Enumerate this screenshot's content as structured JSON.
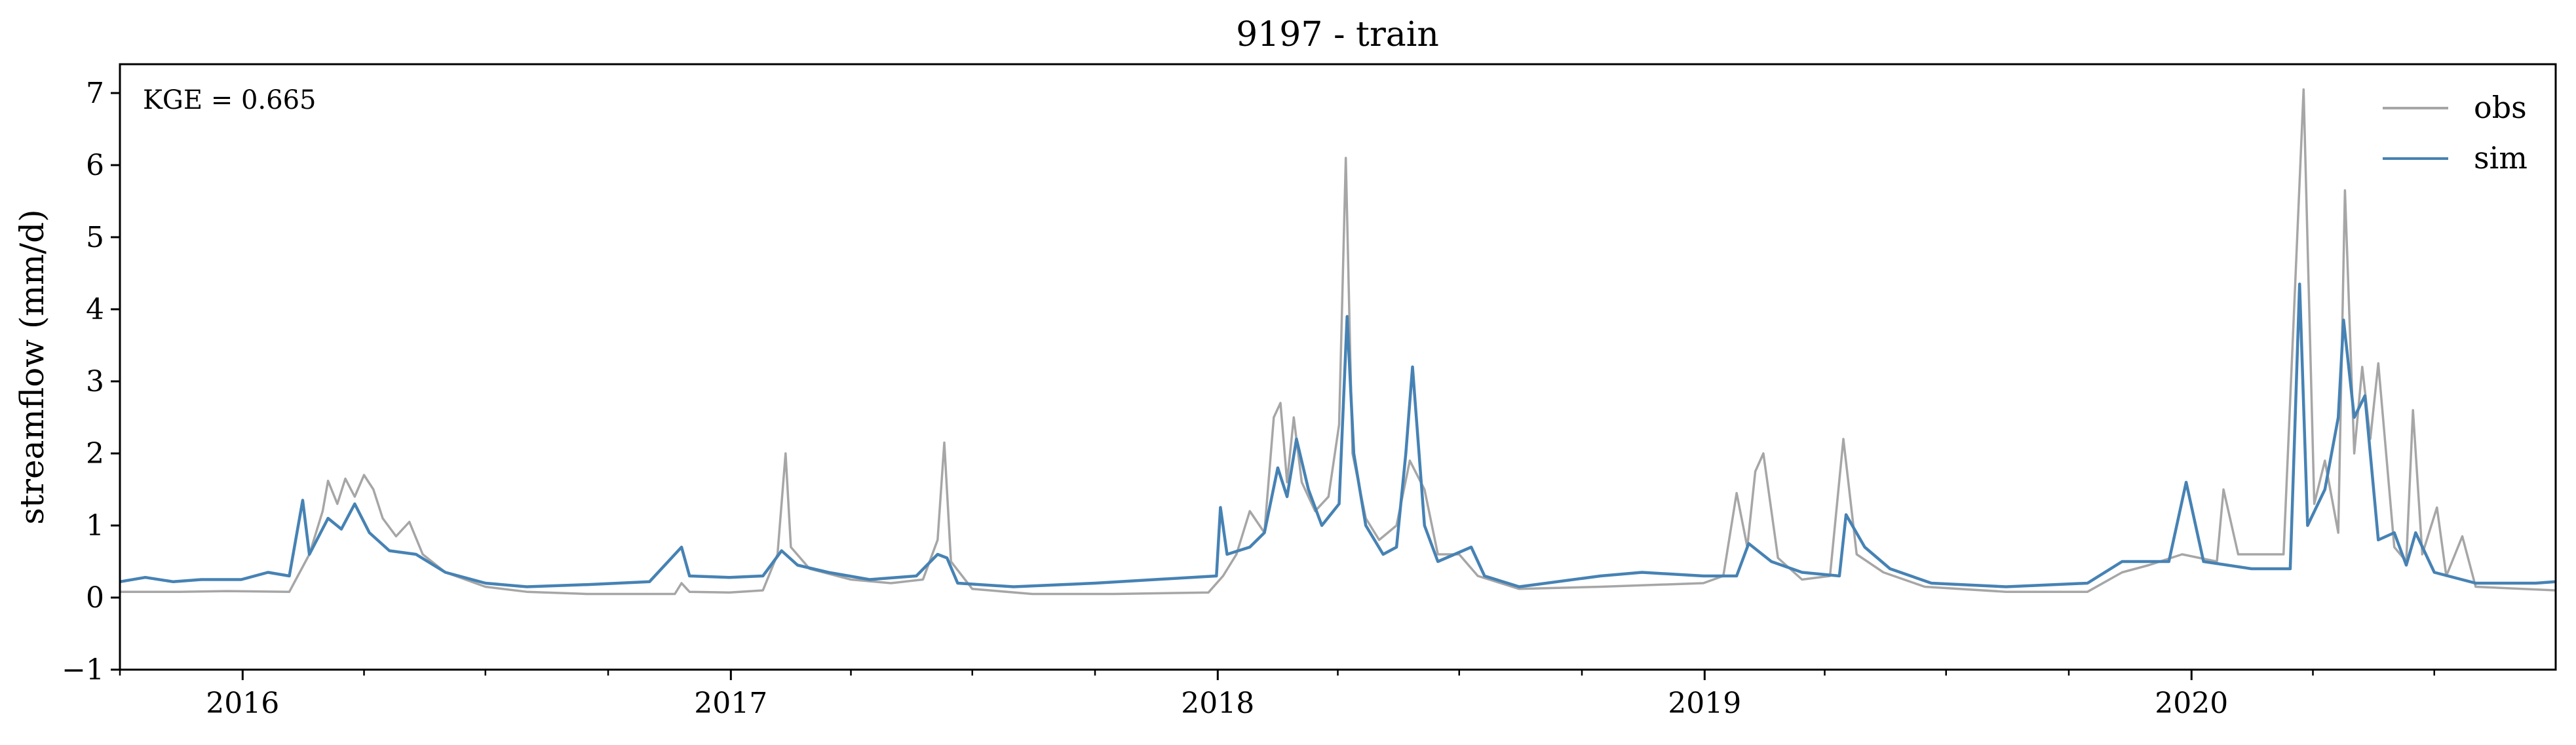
{
  "colors": {
    "obs": "#a6a6a6",
    "sim": "#4682b4",
    "axis": "#000000",
    "background": "#ffffff"
  },
  "chart_data": {
    "type": "line",
    "title": "9197 - train",
    "xlabel": "",
    "ylabel": "streamflow (mm/d)",
    "annotation": "KGE = 0.665",
    "legend_position": "top-right",
    "grid": false,
    "xlim": [
      "2015-10-01",
      "2020-09-30"
    ],
    "ylim": [
      -1,
      7.4
    ],
    "yticks": [
      -1,
      0,
      1,
      2,
      3,
      4,
      5,
      6,
      7
    ],
    "ytick_labels": [
      "−1",
      "0",
      "1",
      "2",
      "3",
      "4",
      "5",
      "6",
      "7"
    ],
    "xticks": [
      "2016-01-01",
      "2017-01-01",
      "2018-01-01",
      "2019-01-01",
      "2020-01-01"
    ],
    "xtick_labels": [
      "2016",
      "2017",
      "2018",
      "2019",
      "2020"
    ],
    "series": [
      {
        "name": "obs",
        "color": "#a6a6a6",
        "points": [
          [
            "2015-10-01",
            0.08
          ],
          [
            "2015-11-15",
            0.08
          ],
          [
            "2015-12-20",
            0.09
          ],
          [
            "2016-02-05",
            0.08
          ],
          [
            "2016-02-20",
            0.6
          ],
          [
            "2016-03-01",
            1.2
          ],
          [
            "2016-03-05",
            1.62
          ],
          [
            "2016-03-12",
            1.3
          ],
          [
            "2016-03-18",
            1.65
          ],
          [
            "2016-03-25",
            1.4
          ],
          [
            "2016-04-01",
            1.7
          ],
          [
            "2016-04-08",
            1.5
          ],
          [
            "2016-04-15",
            1.1
          ],
          [
            "2016-04-25",
            0.85
          ],
          [
            "2016-05-05",
            1.05
          ],
          [
            "2016-05-15",
            0.6
          ],
          [
            "2016-06-01",
            0.35
          ],
          [
            "2016-07-01",
            0.15
          ],
          [
            "2016-08-01",
            0.08
          ],
          [
            "2016-09-15",
            0.05
          ],
          [
            "2016-11-20",
            0.05
          ],
          [
            "2016-11-25",
            0.2
          ],
          [
            "2016-12-01",
            0.08
          ],
          [
            "2016-12-31",
            0.07
          ],
          [
            "2017-01-25",
            0.1
          ],
          [
            "2017-02-05",
            0.6
          ],
          [
            "2017-02-11",
            2.0
          ],
          [
            "2017-02-15",
            0.7
          ],
          [
            "2017-03-01",
            0.4
          ],
          [
            "2017-04-01",
            0.25
          ],
          [
            "2017-05-01",
            0.2
          ],
          [
            "2017-05-25",
            0.25
          ],
          [
            "2017-06-05",
            0.8
          ],
          [
            "2017-06-10",
            2.15
          ],
          [
            "2017-06-15",
            0.5
          ],
          [
            "2017-07-01",
            0.12
          ],
          [
            "2017-08-15",
            0.05
          ],
          [
            "2017-10-15",
            0.05
          ],
          [
            "2017-12-25",
            0.07
          ],
          [
            "2018-01-05",
            0.3
          ],
          [
            "2018-01-15",
            0.6
          ],
          [
            "2018-01-25",
            1.2
          ],
          [
            "2018-02-05",
            0.9
          ],
          [
            "2018-02-12",
            2.5
          ],
          [
            "2018-02-17",
            2.7
          ],
          [
            "2018-02-22",
            1.6
          ],
          [
            "2018-02-27",
            2.5
          ],
          [
            "2018-03-05",
            1.6
          ],
          [
            "2018-03-15",
            1.2
          ],
          [
            "2018-03-25",
            1.4
          ],
          [
            "2018-04-02",
            2.4
          ],
          [
            "2018-04-07",
            6.1
          ],
          [
            "2018-04-12",
            2.0
          ],
          [
            "2018-04-22",
            1.1
          ],
          [
            "2018-05-02",
            0.8
          ],
          [
            "2018-05-15",
            1.0
          ],
          [
            "2018-05-25",
            1.9
          ],
          [
            "2018-06-05",
            1.5
          ],
          [
            "2018-06-15",
            0.6
          ],
          [
            "2018-07-01",
            0.6
          ],
          [
            "2018-07-15",
            0.3
          ],
          [
            "2018-08-15",
            0.12
          ],
          [
            "2018-10-15",
            0.15
          ],
          [
            "2018-12-31",
            0.2
          ],
          [
            "2019-01-15",
            0.3
          ],
          [
            "2019-01-25",
            1.45
          ],
          [
            "2019-02-02",
            0.7
          ],
          [
            "2019-02-08",
            1.75
          ],
          [
            "2019-02-14",
            2.0
          ],
          [
            "2019-02-25",
            0.55
          ],
          [
            "2019-03-15",
            0.25
          ],
          [
            "2019-04-05",
            0.3
          ],
          [
            "2019-04-15",
            2.2
          ],
          [
            "2019-04-25",
            0.6
          ],
          [
            "2019-05-15",
            0.35
          ],
          [
            "2019-06-15",
            0.15
          ],
          [
            "2019-08-15",
            0.08
          ],
          [
            "2019-10-15",
            0.08
          ],
          [
            "2019-11-10",
            0.35
          ],
          [
            "2019-11-30",
            0.45
          ],
          [
            "2019-12-25",
            0.6
          ],
          [
            "2020-01-20",
            0.5
          ],
          [
            "2020-01-25",
            1.5
          ],
          [
            "2020-02-05",
            0.6
          ],
          [
            "2020-03-10",
            0.6
          ],
          [
            "2020-03-25",
            7.05
          ],
          [
            "2020-04-02",
            1.3
          ],
          [
            "2020-04-10",
            1.9
          ],
          [
            "2020-04-20",
            0.9
          ],
          [
            "2020-04-25",
            5.65
          ],
          [
            "2020-05-02",
            2.0
          ],
          [
            "2020-05-08",
            3.2
          ],
          [
            "2020-05-14",
            2.2
          ],
          [
            "2020-05-20",
            3.25
          ],
          [
            "2020-06-01",
            0.7
          ],
          [
            "2020-06-10",
            0.5
          ],
          [
            "2020-06-15",
            2.6
          ],
          [
            "2020-06-22",
            0.6
          ],
          [
            "2020-07-03",
            1.25
          ],
          [
            "2020-07-10",
            0.3
          ],
          [
            "2020-07-22",
            0.85
          ],
          [
            "2020-08-01",
            0.15
          ],
          [
            "2020-09-30",
            0.1
          ]
        ]
      },
      {
        "name": "sim",
        "color": "#4682b4",
        "points": [
          [
            "2015-10-01",
            0.22
          ],
          [
            "2015-10-20",
            0.28
          ],
          [
            "2015-11-10",
            0.22
          ],
          [
            "2015-12-01",
            0.25
          ],
          [
            "2015-12-31",
            0.25
          ],
          [
            "2016-01-20",
            0.35
          ],
          [
            "2016-02-05",
            0.3
          ],
          [
            "2016-02-15",
            1.35
          ],
          [
            "2016-02-20",
            0.6
          ],
          [
            "2016-03-05",
            1.1
          ],
          [
            "2016-03-15",
            0.95
          ],
          [
            "2016-03-25",
            1.3
          ],
          [
            "2016-04-05",
            0.9
          ],
          [
            "2016-04-20",
            0.65
          ],
          [
            "2016-05-10",
            0.6
          ],
          [
            "2016-06-01",
            0.35
          ],
          [
            "2016-07-01",
            0.2
          ],
          [
            "2016-08-01",
            0.15
          ],
          [
            "2016-09-15",
            0.18
          ],
          [
            "2016-11-01",
            0.22
          ],
          [
            "2016-11-25",
            0.7
          ],
          [
            "2016-12-01",
            0.3
          ],
          [
            "2016-12-31",
            0.28
          ],
          [
            "2017-01-25",
            0.3
          ],
          [
            "2017-02-08",
            0.65
          ],
          [
            "2017-02-20",
            0.45
          ],
          [
            "2017-03-15",
            0.35
          ],
          [
            "2017-04-15",
            0.25
          ],
          [
            "2017-05-20",
            0.3
          ],
          [
            "2017-06-05",
            0.6
          ],
          [
            "2017-06-12",
            0.55
          ],
          [
            "2017-06-20",
            0.2
          ],
          [
            "2017-08-01",
            0.15
          ],
          [
            "2017-10-01",
            0.2
          ],
          [
            "2017-11-15",
            0.25
          ],
          [
            "2017-12-31",
            0.3
          ],
          [
            "2018-01-03",
            1.25
          ],
          [
            "2018-01-08",
            0.6
          ],
          [
            "2018-01-25",
            0.7
          ],
          [
            "2018-02-05",
            0.9
          ],
          [
            "2018-02-15",
            1.8
          ],
          [
            "2018-02-22",
            1.4
          ],
          [
            "2018-03-01",
            2.2
          ],
          [
            "2018-03-10",
            1.5
          ],
          [
            "2018-03-20",
            1.0
          ],
          [
            "2018-04-02",
            1.3
          ],
          [
            "2018-04-08",
            3.9
          ],
          [
            "2018-04-13",
            2.0
          ],
          [
            "2018-04-22",
            1.0
          ],
          [
            "2018-05-05",
            0.6
          ],
          [
            "2018-05-15",
            0.7
          ],
          [
            "2018-05-22",
            2.0
          ],
          [
            "2018-05-27",
            3.2
          ],
          [
            "2018-06-05",
            1.0
          ],
          [
            "2018-06-15",
            0.5
          ],
          [
            "2018-07-10",
            0.7
          ],
          [
            "2018-07-20",
            0.3
          ],
          [
            "2018-08-15",
            0.15
          ],
          [
            "2018-10-15",
            0.3
          ],
          [
            "2018-11-15",
            0.35
          ],
          [
            "2018-12-31",
            0.3
          ],
          [
            "2019-01-25",
            0.3
          ],
          [
            "2019-02-03",
            0.75
          ],
          [
            "2019-02-20",
            0.5
          ],
          [
            "2019-03-15",
            0.35
          ],
          [
            "2019-04-12",
            0.3
          ],
          [
            "2019-04-17",
            1.15
          ],
          [
            "2019-05-01",
            0.7
          ],
          [
            "2019-05-20",
            0.4
          ],
          [
            "2019-06-20",
            0.2
          ],
          [
            "2019-08-15",
            0.15
          ],
          [
            "2019-10-15",
            0.2
          ],
          [
            "2019-11-10",
            0.5
          ],
          [
            "2019-11-25",
            0.5
          ],
          [
            "2019-12-15",
            0.5
          ],
          [
            "2019-12-28",
            1.6
          ],
          [
            "2020-01-10",
            0.5
          ],
          [
            "2020-02-15",
            0.4
          ],
          [
            "2020-03-15",
            0.4
          ],
          [
            "2020-03-22",
            4.35
          ],
          [
            "2020-03-28",
            1.0
          ],
          [
            "2020-04-10",
            1.5
          ],
          [
            "2020-04-20",
            2.5
          ],
          [
            "2020-04-24",
            3.85
          ],
          [
            "2020-05-02",
            2.5
          ],
          [
            "2020-05-10",
            2.8
          ],
          [
            "2020-05-20",
            0.8
          ],
          [
            "2020-06-01",
            0.9
          ],
          [
            "2020-06-10",
            0.45
          ],
          [
            "2020-06-17",
            0.9
          ],
          [
            "2020-07-01",
            0.35
          ],
          [
            "2020-08-01",
            0.2
          ],
          [
            "2020-09-15",
            0.2
          ],
          [
            "2020-09-30",
            0.22
          ]
        ]
      }
    ]
  }
}
